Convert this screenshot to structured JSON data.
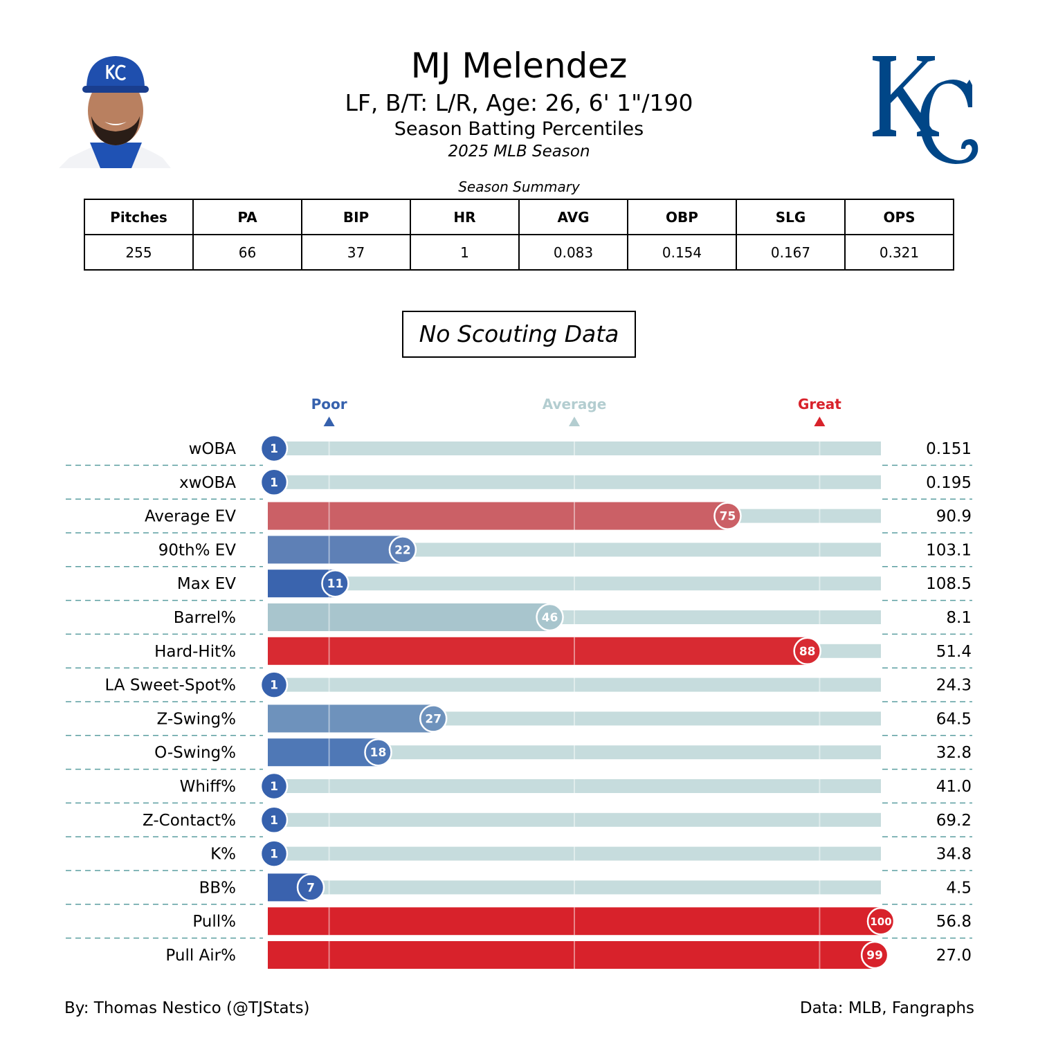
{
  "header": {
    "title": "MJ Melendez",
    "subtitle": "LF, B/T: L/R, Age: 26, 6' 1\"/190",
    "subtitle2": "Season Batting Percentiles",
    "season": "2025 MLB Season",
    "logo_text": "KC",
    "logo_color": "#004687"
  },
  "summary": {
    "caption": "Season Summary",
    "headers": [
      "Pitches",
      "PA",
      "BIP",
      "HR",
      "AVG",
      "OBP",
      "SLG",
      "OPS"
    ],
    "values": [
      "255",
      "66",
      "37",
      "1",
      "0.083",
      "0.154",
      "0.167",
      "0.321"
    ]
  },
  "scouting": "No Scouting Data",
  "footer": {
    "left": "By: Thomas Nestico (@TJStats)",
    "right": "Data: MLB, Fangraphs"
  },
  "chart_data": {
    "type": "bar",
    "orientation": "horizontal",
    "xlim": [
      0,
      100
    ],
    "markers": [
      {
        "label": "Poor",
        "value": 10,
        "color": "#3661ad"
      },
      {
        "label": "Average",
        "value": 50,
        "color": "#b3cdd0"
      },
      {
        "label": "Great",
        "value": 90,
        "color": "#d8222b"
      }
    ],
    "background_color": "#c6dcdd",
    "categories": [
      "wOBA",
      "xwOBA",
      "Average EV",
      "90th% EV",
      "Max EV",
      "Barrel%",
      "Hard-Hit%",
      "LA Sweet-Spot%",
      "Z-Swing%",
      "O-Swing%",
      "Whiff%",
      "Z-Contact%",
      "K%",
      "BB%",
      "Pull%",
      "Pull Air%"
    ],
    "percentiles": [
      1,
      1,
      75,
      22,
      11,
      46,
      88,
      1,
      27,
      18,
      1,
      1,
      1,
      7,
      100,
      99
    ],
    "stat_values": [
      "0.151",
      "0.195",
      "90.9",
      "103.1",
      "108.5",
      "8.1",
      "51.4",
      "24.3",
      "64.5",
      "32.8",
      "41.0",
      "69.2",
      "34.8",
      "4.5",
      "56.8",
      "27.0"
    ],
    "colors": [
      "#3661ad",
      "#3661ad",
      "#cb6066",
      "#5e80b6",
      "#3a64ae",
      "#a8c5cd",
      "#d82a32",
      "#3661ad",
      "#6e92bc",
      "#4f78b6",
      "#3661ad",
      "#3661ad",
      "#3661ad",
      "#3a62ae",
      "#d8222b",
      "#d8222b"
    ]
  }
}
